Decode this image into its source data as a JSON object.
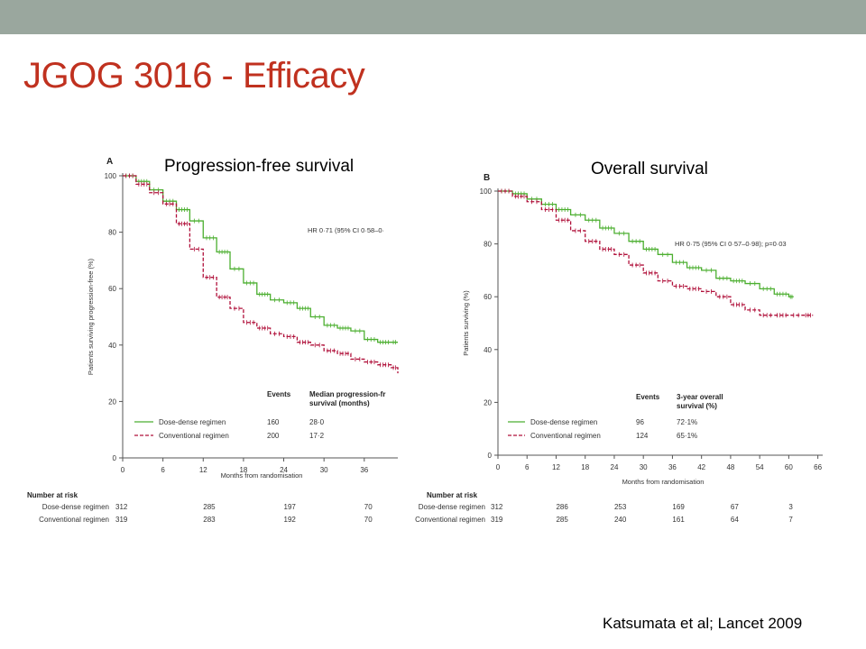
{
  "slide": {
    "title": "JGOG 3016 - Efficacy",
    "citation": "Katsumata et al; Lancet 2009"
  },
  "colors": {
    "dose_dense": "#4caf30",
    "conventional": "#b0103a",
    "title": "#c0311f",
    "topbar": "#9aa79e"
  },
  "chart_data": [
    {
      "panel": "A",
      "type": "line",
      "title": "Progression-free survival",
      "xlabel": "Months from randomisation",
      "ylabel": "Patients surviving progression-free (%)",
      "xlim": [
        0,
        41
      ],
      "ylim": [
        0,
        100
      ],
      "xticks": [
        "0",
        "6",
        "12",
        "18",
        "24",
        "30",
        "36"
      ],
      "yticks": [
        "0",
        "20",
        "40",
        "60",
        "80",
        "100"
      ],
      "hr_text": "HR 0·71 (95% CI 0·58–0·",
      "table": {
        "headers": [
          "Events",
          "Median progression-fr survival (months)"
        ],
        "rows": [
          {
            "label": "Dose-dense regimen",
            "events": "160",
            "median": "28·0"
          },
          {
            "label": "Conventional regimen",
            "events": "200",
            "median": "17·2"
          }
        ]
      },
      "risk": {
        "heading": "Number at risk",
        "rows": [
          {
            "label": "Dose-dense regimen",
            "values": [
              "312",
              "285",
              "197",
              "70"
            ]
          },
          {
            "label": "Conventional regimen",
            "values": [
              "319",
              "283",
              "192",
              "70"
            ]
          }
        ],
        "months": [
          0,
          12,
          24,
          36
        ]
      },
      "series": [
        {
          "name": "Dose-dense regimen",
          "style": "solid",
          "color": "#4caf30",
          "x": [
            0,
            2,
            4,
            6,
            8,
            10,
            12,
            14,
            16,
            18,
            20,
            22,
            24,
            26,
            28,
            30,
            32,
            34,
            36,
            38,
            40,
            41
          ],
          "y": [
            100,
            98,
            95,
            91,
            88,
            84,
            78,
            73,
            67,
            62,
            58,
            56,
            55,
            53,
            50,
            47,
            46,
            45,
            42,
            41,
            41,
            41
          ]
        },
        {
          "name": "Conventional regimen",
          "style": "dashed",
          "color": "#b0103a",
          "x": [
            0,
            2,
            4,
            6,
            8,
            10,
            12,
            14,
            16,
            18,
            20,
            22,
            24,
            26,
            28,
            30,
            32,
            34,
            36,
            38,
            40,
            41
          ],
          "y": [
            100,
            97,
            94,
            90,
            83,
            74,
            64,
            57,
            53,
            48,
            46,
            44,
            43,
            41,
            40,
            38,
            37,
            35,
            34,
            33,
            32,
            30
          ]
        }
      ]
    },
    {
      "panel": "B",
      "type": "line",
      "title": "Overall survival",
      "xlabel": "Months from randomisation",
      "ylabel": "Patients surviving (%)",
      "xlim": [
        0,
        67
      ],
      "ylim": [
        0,
        100
      ],
      "xticks": [
        "0",
        "6",
        "12",
        "18",
        "24",
        "30",
        "36",
        "42",
        "48",
        "54",
        "60",
        "66"
      ],
      "yticks": [
        "0",
        "20",
        "40",
        "60",
        "80",
        "100"
      ],
      "hr_text": "HR 0·75 (95% CI 0·57–0·98); p=0·03",
      "table": {
        "headers": [
          "Events",
          "3-year overall survival (%)"
        ],
        "rows": [
          {
            "label": "Dose-dense regimen",
            "events": "96",
            "median": "72·1%"
          },
          {
            "label": "Conventional regimen",
            "events": "124",
            "median": "65·1%"
          }
        ]
      },
      "risk": {
        "heading": "Number at risk",
        "rows": [
          {
            "label": "Dose-dense regimen",
            "values": [
              "312",
              "286",
              "253",
              "169",
              "67",
              "3"
            ]
          },
          {
            "label": "Conventional regimen",
            "values": [
              "319",
              "285",
              "240",
              "161",
              "64",
              "7"
            ]
          }
        ],
        "months": [
          0,
          12,
          24,
          36,
          48,
          60
        ]
      },
      "series": [
        {
          "name": "Dose-dense regimen",
          "style": "solid",
          "color": "#4caf30",
          "x": [
            0,
            3,
            6,
            9,
            12,
            15,
            18,
            21,
            24,
            27,
            30,
            33,
            36,
            39,
            42,
            45,
            48,
            51,
            54,
            57,
            60,
            61
          ],
          "y": [
            100,
            99,
            97,
            95,
            93,
            91,
            89,
            86,
            84,
            81,
            78,
            76,
            73,
            71,
            70,
            67,
            66,
            65,
            63,
            61,
            60,
            60
          ]
        },
        {
          "name": "Conventional regimen",
          "style": "dashed",
          "color": "#b0103a",
          "x": [
            0,
            3,
            6,
            9,
            12,
            15,
            18,
            21,
            24,
            27,
            30,
            33,
            36,
            39,
            42,
            45,
            48,
            51,
            54,
            57,
            60,
            63,
            65
          ],
          "y": [
            100,
            98,
            96,
            93,
            89,
            85,
            81,
            78,
            76,
            72,
            69,
            66,
            64,
            63,
            62,
            60,
            57,
            55,
            53,
            53,
            53,
            53,
            53
          ]
        }
      ]
    }
  ]
}
